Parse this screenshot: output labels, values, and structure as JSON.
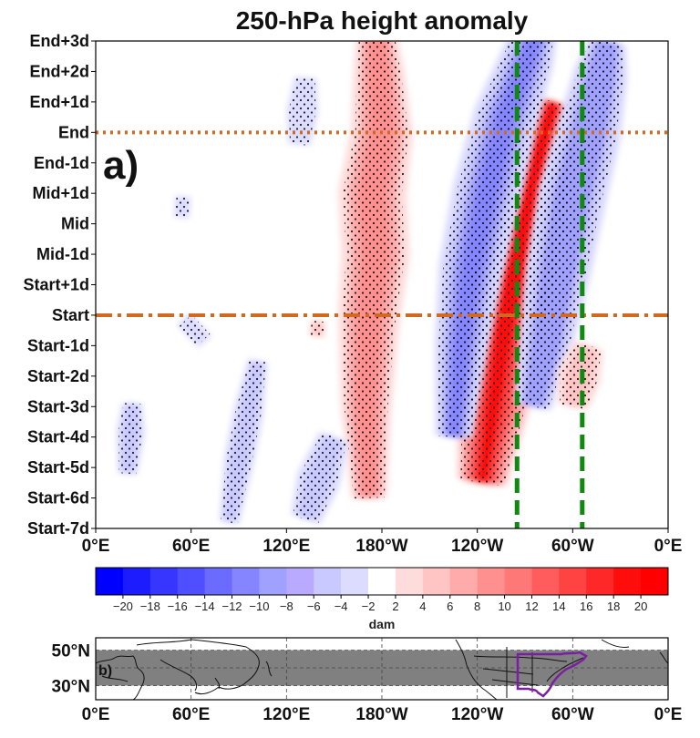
{
  "chart_data": [
    {
      "type": "heatmap",
      "panel_label": "a)",
      "title": "250-hPa height anomaly",
      "xlabel": "",
      "ylabel": "",
      "x_ticks": [
        "0°E",
        "60°E",
        "120°E",
        "180°W",
        "120°W",
        "60°W",
        "0°E"
      ],
      "x_tick_longitudes": [
        0,
        60,
        120,
        180,
        240,
        300,
        360
      ],
      "xlim": [
        0,
        360
      ],
      "y_ticks": [
        "End+3d",
        "End+2d",
        "End+1d",
        "End",
        "End-1d",
        "Mid+1d",
        "Mid",
        "Mid-1d",
        "Start+1d",
        "Start",
        "Start-1d",
        "Start-2d",
        "Start-3d",
        "Start-4d",
        "Start-5d",
        "Start-6d",
        "Start-7d"
      ],
      "y_tick_index": [
        16,
        15,
        14,
        13,
        12,
        11,
        10,
        9,
        8,
        7,
        6,
        5,
        4,
        3,
        2,
        1,
        0
      ],
      "reference_lines": [
        {
          "kind": "horizontal",
          "at": "End",
          "style": "dotted",
          "color": "#d2691e"
        },
        {
          "kind": "horizontal",
          "at": "Start",
          "style": "dash-dot",
          "color": "#d2691e"
        },
        {
          "kind": "vertical",
          "longitude": 265,
          "style": "dashed",
          "color": "#118811"
        },
        {
          "kind": "vertical",
          "longitude": 306,
          "style": "dashed",
          "color": "#118811"
        }
      ],
      "anomaly_features": [
        {
          "sign": "positive",
          "peak_dam": 8,
          "path": [
            [
              172,
              1
            ],
            [
              170,
              4
            ],
            [
              172,
              7
            ],
            [
              176,
              9
            ],
            [
              174,
              11
            ],
            [
              180,
              13
            ],
            [
              178,
              15
            ],
            [
              176,
              16.8
            ]
          ],
          "width_deg": 22
        },
        {
          "sign": "positive",
          "peak_dam": 18,
          "path": [
            [
              243,
              1.5
            ],
            [
              250,
              4
            ],
            [
              257,
              6.5
            ],
            [
              264,
              8.5
            ],
            [
              272,
              10.5
            ],
            [
              280,
              12.5
            ],
            [
              288,
              14
            ]
          ],
          "width_deg": 30
        },
        {
          "sign": "negative",
          "peak_dam": -12,
          "path": [
            [
              225,
              3
            ],
            [
              230,
              6
            ],
            [
              236,
              8.5
            ],
            [
              246,
              11
            ],
            [
              258,
              13.5
            ],
            [
              272,
              15.5
            ],
            [
              280,
              16.8
            ]
          ],
          "width_deg": 22
        },
        {
          "sign": "negative",
          "peak_dam": -10,
          "path": [
            [
              275,
              4
            ],
            [
              283,
              6
            ],
            [
              291,
              8.5
            ],
            [
              300,
              11
            ],
            [
              310,
              13
            ],
            [
              318,
              15
            ],
            [
              322,
              16
            ]
          ],
          "width_deg": 22
        },
        {
          "sign": "positive",
          "peak_dam": 5,
          "path": [
            [
              300,
              4
            ],
            [
              304,
              5
            ],
            [
              310,
              6
            ]
          ],
          "width_deg": 14
        },
        {
          "sign": "negative",
          "peak_dam": -5,
          "path": [
            [
              84,
              0.2
            ],
            [
              90,
              2.2
            ],
            [
              96,
              3.8
            ],
            [
              102,
              5.5
            ]
          ],
          "width_deg": 10
        },
        {
          "sign": "negative",
          "peak_dam": -5,
          "path": [
            [
              132,
              0.3
            ],
            [
              140,
              1.6
            ],
            [
              150,
              3
            ]
          ],
          "width_deg": 14
        },
        {
          "sign": "negative",
          "peak_dam": -5,
          "path": [
            [
              20,
              1.8
            ],
            [
              22,
              3.2
            ],
            [
              23,
              4.1
            ]
          ],
          "width_deg": 9
        },
        {
          "sign": "negative",
          "peak_dam": -4,
          "path": [
            [
              58,
              6.3
            ],
            [
              66,
              6.7
            ]
          ],
          "width_deg": 12
        },
        {
          "sign": "negative",
          "peak_dam": -4,
          "path": [
            [
              54,
              10.2
            ],
            [
              55,
              10.9
            ]
          ],
          "width_deg": 6
        },
        {
          "sign": "negative",
          "peak_dam": -4,
          "path": [
            [
              128,
              12.6
            ],
            [
              130,
              13.7
            ],
            [
              132,
              14.8
            ]
          ],
          "width_deg": 10
        },
        {
          "sign": "positive",
          "peak_dam": 5,
          "path": [
            [
              139,
              6.3
            ],
            [
              140,
              6.8
            ]
          ],
          "width_deg": 6
        }
      ],
      "colorbar": {
        "label": "dam",
        "tick_labels": [
          "−20",
          "−18",
          "−16",
          "−14",
          "−12",
          "−10",
          "−8",
          "−6",
          "−4",
          "−2",
          "2",
          "4",
          "6",
          "8",
          "10",
          "12",
          "14",
          "16",
          "18",
          "20"
        ],
        "levels": [
          -22,
          -20,
          -18,
          -16,
          -14,
          -12,
          -10,
          -8,
          -6,
          -4,
          -2,
          2,
          4,
          6,
          8,
          10,
          12,
          14,
          16,
          18,
          20,
          22
        ],
        "colors": [
          "#0000ff",
          "#1c1cff",
          "#3636ff",
          "#4f4fff",
          "#6b6bff",
          "#8585ff",
          "#a0a0ff",
          "#baaaff",
          "#c9c9ff",
          "#dcdcff",
          "#ffffff",
          "#ffdcdc",
          "#ffc4c4",
          "#ffabab",
          "#ff9090",
          "#ff7878",
          "#ff5d5d",
          "#ff4242",
          "#ff2828",
          "#ff0d0d",
          "#ff0000"
        ]
      }
    },
    {
      "type": "map",
      "panel_label": "b)",
      "y_ticks": [
        "50°N",
        "30°N"
      ],
      "y_tick_latitudes": [
        50,
        30
      ],
      "ylim": [
        22,
        57
      ],
      "x_ticks": [
        "0°E",
        "60°E",
        "120°E",
        "180°W",
        "120°W",
        "60°W",
        "0°E"
      ],
      "shaded_band_latitudes": [
        30,
        50
      ],
      "highlight_region_color": "#7b1fa2"
    }
  ]
}
